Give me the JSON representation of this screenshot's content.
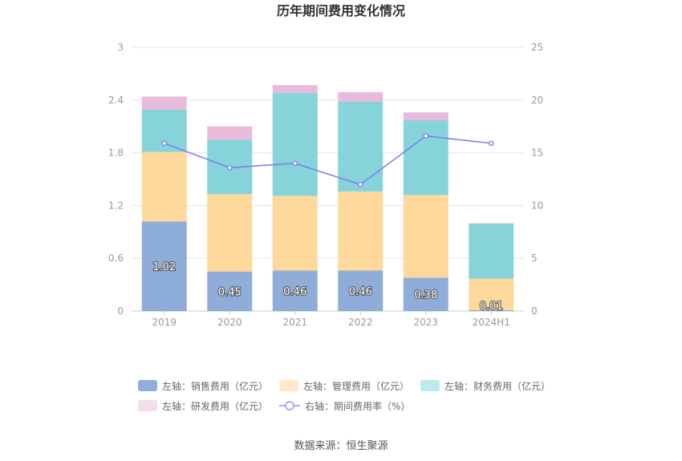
{
  "chart_data": {
    "type": "bar",
    "title": "历年期间费用变化情况",
    "categories": [
      "2019",
      "2020",
      "2021",
      "2022",
      "2023",
      "2024H1"
    ],
    "stacked": true,
    "y_left": {
      "lim": [
        0,
        3
      ],
      "ticks": [
        "0",
        "0.6",
        "1.2",
        "1.8",
        "2.4",
        "3"
      ]
    },
    "y_right": {
      "lim": [
        0,
        25
      ],
      "ticks": [
        "0",
        "5",
        "10",
        "15",
        "20",
        "25"
      ]
    },
    "grid": true,
    "legend_position": "bottom",
    "series": [
      {
        "name": "左轴：销售费用（亿元）",
        "axis": "left",
        "kind": "bar",
        "color": "#8fadd9",
        "values": [
          1.02,
          0.45,
          0.46,
          0.46,
          0.38,
          0.01
        ],
        "labels": [
          "1.02",
          "0.45",
          "0.46",
          "0.46",
          "0.38",
          "0.01"
        ]
      },
      {
        "name": "左轴：管理费用（亿元）",
        "axis": "left",
        "kind": "bar",
        "color": "#ffd89b",
        "values": [
          0.79,
          0.88,
          0.85,
          0.9,
          0.94,
          0.36
        ]
      },
      {
        "name": "左轴：财务费用（亿元）",
        "axis": "left",
        "kind": "bar",
        "color": "#86d4d9",
        "values": [
          0.48,
          0.62,
          1.17,
          1.02,
          0.85,
          0.62
        ]
      },
      {
        "name": "左轴：研发费用（亿元）",
        "axis": "left",
        "kind": "bar",
        "color": "#e8bbdb",
        "values": [
          0.15,
          0.15,
          0.09,
          0.11,
          0.09,
          0.01
        ]
      },
      {
        "name": "右轴：期间费用率（%）",
        "axis": "right",
        "kind": "line",
        "color": "#7b7ff0",
        "values": [
          15.9,
          13.6,
          14.0,
          12.0,
          16.6,
          15.9
        ]
      }
    ],
    "legend_colors": {
      "left_sales": "#8fadd9",
      "left_admin": "#ffe9c6",
      "left_fin": "#bfe9ec",
      "left_rd": "#f3dcec",
      "right_rate": "#7b7ff0"
    },
    "source": "数据来源：恒生聚源"
  }
}
